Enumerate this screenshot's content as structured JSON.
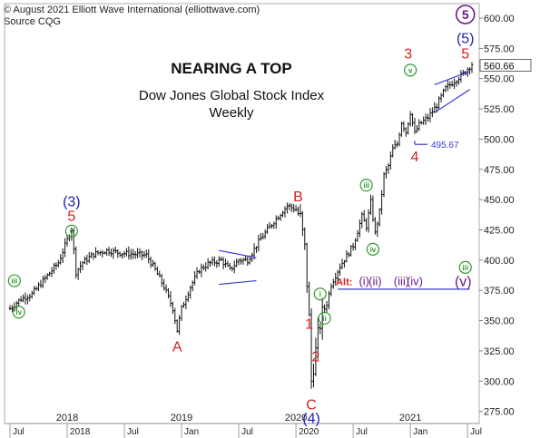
{
  "header": {
    "copyright": "© August 2021 Elliott Wave International (elliottwave.com)",
    "source": "Source CQG"
  },
  "colors": {
    "candles": "#111111",
    "red_label": "#d42020",
    "blue_label": "#1e1eb4",
    "green_label": "#2e9a2e",
    "purple_label": "#6a1a8a",
    "trendline": "#3a3ad0"
  },
  "chart_data": {
    "type": "candlestick",
    "title": "NEARING A TOP",
    "subtitle": "Dow Jones Global Stock Index",
    "subtitle2": "Weekly",
    "ylim": [
      265,
      612
    ],
    "yticks": [
      275,
      300,
      325,
      350,
      375,
      400,
      425,
      450,
      475,
      500,
      525,
      550,
      575,
      600
    ],
    "ytick_labels": [
      "275.00",
      "300.00",
      "325.00",
      "350.00",
      "375.00",
      "400.00",
      "425.00",
      "450.00",
      "475.00",
      "500.00",
      "525.00",
      "550.00",
      "575.00",
      "600.00"
    ],
    "last_price": "560.66",
    "last_value": 560.66,
    "x_range": [
      0,
      210
    ],
    "x_ticks": [
      {
        "t": 0,
        "label": "Jul"
      },
      {
        "t": 26,
        "label": "2018"
      },
      {
        "t": 52,
        "label": "Jul"
      },
      {
        "t": 78,
        "label": "Jan"
      },
      {
        "t": 104,
        "label": "Jul"
      },
      {
        "t": 130,
        "label": "2020"
      },
      {
        "t": 156,
        "label": "Jul"
      },
      {
        "t": 182,
        "label": "Jan"
      },
      {
        "t": 208,
        "label": "Jul"
      }
    ],
    "year_labels": [
      {
        "t": 26,
        "label": "2018"
      },
      {
        "t": 78,
        "label": "2019"
      },
      {
        "t": 130,
        "label": "2020"
      },
      {
        "t": 182,
        "label": "2021"
      }
    ],
    "anchors": [
      [
        0,
        360
      ],
      [
        5,
        368
      ],
      [
        10,
        372
      ],
      [
        16,
        385
      ],
      [
        22,
        398
      ],
      [
        25,
        412
      ],
      [
        28,
        426
      ],
      [
        30,
        390
      ],
      [
        33,
        398
      ],
      [
        38,
        405
      ],
      [
        44,
        408
      ],
      [
        50,
        406
      ],
      [
        56,
        405
      ],
      [
        62,
        404
      ],
      [
        66,
        392
      ],
      [
        70,
        378
      ],
      [
        74,
        360
      ],
      [
        76,
        342
      ],
      [
        78,
        360
      ],
      [
        82,
        378
      ],
      [
        86,
        392
      ],
      [
        90,
        397
      ],
      [
        96,
        400
      ],
      [
        100,
        392
      ],
      [
        104,
        400
      ],
      [
        108,
        400
      ],
      [
        114,
        418
      ],
      [
        120,
        432
      ],
      [
        126,
        445
      ],
      [
        130,
        442
      ],
      [
        132,
        435
      ],
      [
        134,
        410
      ],
      [
        136,
        352
      ],
      [
        137,
        300
      ],
      [
        138,
        312
      ],
      [
        140,
        338
      ],
      [
        142,
        356
      ],
      [
        144,
        364
      ],
      [
        146,
        380
      ],
      [
        150,
        395
      ],
      [
        156,
        412
      ],
      [
        160,
        436
      ],
      [
        162,
        428
      ],
      [
        164,
        448
      ],
      [
        166,
        422
      ],
      [
        168,
        440
      ],
      [
        170,
        470
      ],
      [
        172,
        478
      ],
      [
        174,
        492
      ],
      [
        176,
        496
      ],
      [
        178,
        514
      ],
      [
        180,
        506
      ],
      [
        182,
        522
      ],
      [
        184,
        505
      ],
      [
        186,
        512
      ],
      [
        190,
        518
      ],
      [
        194,
        528
      ],
      [
        198,
        542
      ],
      [
        202,
        548
      ],
      [
        206,
        554
      ],
      [
        210,
        562
      ]
    ],
    "wave_labels": [
      {
        "text": "(3)",
        "t": 28,
        "v": 449,
        "color": "blue",
        "circled": false
      },
      {
        "text": "5",
        "t": 28,
        "v": 437,
        "color": "red",
        "circled": false
      },
      {
        "text": "v",
        "t": 28,
        "v": 424,
        "color": "green",
        "circled": true
      },
      {
        "text": "iii",
        "t": 2,
        "v": 383,
        "color": "green",
        "circled": true
      },
      {
        "text": "iv",
        "t": 4,
        "v": 357,
        "color": "green",
        "circled": true
      },
      {
        "text": "A",
        "t": 76,
        "v": 329,
        "color": "red",
        "circled": false
      },
      {
        "text": "B",
        "t": 131,
        "v": 453,
        "color": "red",
        "circled": false
      },
      {
        "text": "1",
        "t": 136,
        "v": 348,
        "color": "red",
        "circled": false
      },
      {
        "text": "i",
        "t": 141,
        "v": 372,
        "color": "green",
        "circled": true
      },
      {
        "text": "ii",
        "t": 143,
        "v": 352,
        "color": "green",
        "circled": true
      },
      {
        "text": "2",
        "t": 139,
        "v": 321,
        "color": "red",
        "circled": false
      },
      {
        "text": "C",
        "t": 137,
        "v": 281,
        "color": "red",
        "circled": false
      },
      {
        "text": "(4)",
        "t": 137,
        "v": 270,
        "color": "blue",
        "circled": false
      },
      {
        "text": "iii",
        "t": 162,
        "v": 462,
        "color": "green",
        "circled": true
      },
      {
        "text": "iv",
        "t": 165,
        "v": 409,
        "color": "green",
        "circled": true
      },
      {
        "text": "3",
        "t": 181,
        "v": 571,
        "color": "red",
        "circled": false
      },
      {
        "text": "v",
        "t": 182,
        "v": 557,
        "color": "green",
        "circled": true
      },
      {
        "text": "4",
        "t": 184,
        "v": 486,
        "color": "red",
        "circled": false
      },
      {
        "text": "(5)",
        "t": 207,
        "v": 584,
        "color": "blue",
        "circled": false
      },
      {
        "text": "5",
        "t": 207,
        "v": 571,
        "color": "red",
        "circled": false
      },
      {
        "text": "5",
        "t": 207,
        "v": 603,
        "color": "purple",
        "circled": true
      },
      {
        "text": "iii",
        "t": 207,
        "v": 394,
        "color": "green",
        "circled": true
      },
      {
        "text": "(v)",
        "t": 206,
        "v": 383,
        "color": "purple",
        "circled": false
      }
    ],
    "alt_count": {
      "prefix": "Alt:",
      "labels": [
        {
          "text": "(i)",
          "t": 161
        },
        {
          "text": "(ii)",
          "t": 166
        },
        {
          "text": "(iii)",
          "t": 178
        },
        {
          "text": "(iv)",
          "t": 184
        }
      ],
      "level": 383,
      "line_level": 376,
      "line_range": [
        149,
        209
      ]
    },
    "low_4": {
      "value": 495.67,
      "label": "495.67",
      "t": 184
    },
    "triangles": [
      {
        "upper": [
          [
            95,
            408
          ],
          [
            112,
            402
          ]
        ],
        "lower": [
          [
            95,
            380
          ],
          [
            112,
            383
          ]
        ]
      },
      {
        "upper": [
          [
            193,
            545
          ],
          [
            209,
            556
          ]
        ],
        "lower": [
          [
            193,
            522
          ],
          [
            209,
            541
          ]
        ]
      }
    ]
  }
}
